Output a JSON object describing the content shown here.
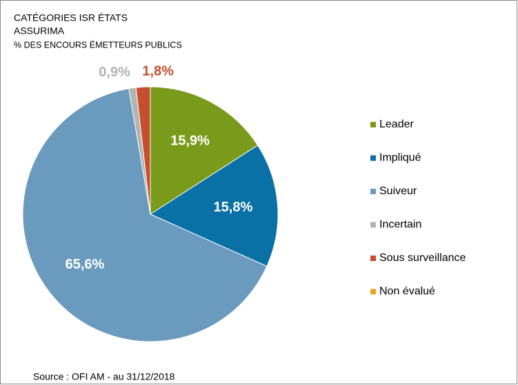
{
  "chart_data": {
    "type": "pie",
    "title": "CATÉGORIES ISR ÉTATS",
    "subtitle": "ASSURIMA",
    "unit_label": "% DES ENCOURS ÉMETTEURS PUBLICS",
    "categories": [
      "Leader",
      "Impliqué",
      "Suiveur",
      "Incertain",
      "Sous surveillance",
      "Non évalué"
    ],
    "values": [
      15.9,
      15.8,
      65.6,
      0.9,
      1.8,
      0
    ],
    "value_labels": [
      "15,9%",
      "15,8%",
      "65,6%",
      "0,9%",
      "1,8%",
      null
    ],
    "colors": [
      "#7a9a1c",
      "#0a71a6",
      "#6a9bbf",
      "#b3b3b3",
      "#c4502e",
      "#e8a41c"
    ],
    "source": "Source : OFI AM  - au 31/12/2018",
    "legend": "right"
  }
}
